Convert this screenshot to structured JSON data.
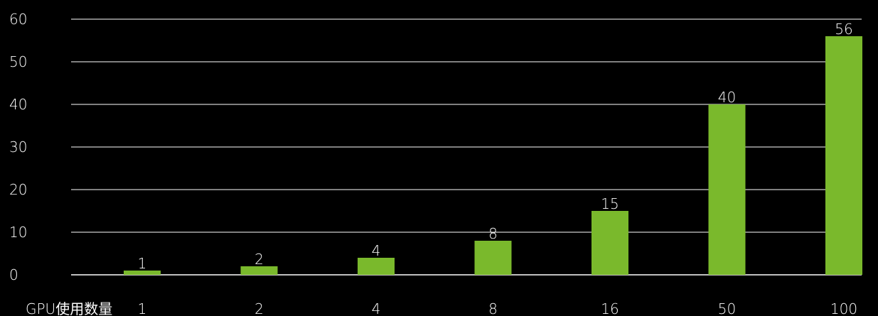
{
  "chart_data": {
    "type": "bar",
    "xlabel": "GPU使用数量",
    "ylabel": "",
    "title": "",
    "categories": [
      "1",
      "2",
      "4",
      "8",
      "16",
      "50",
      "100"
    ],
    "values": [
      1,
      2,
      4,
      8,
      15,
      40,
      56
    ],
    "ylim": [
      0,
      60
    ],
    "yticks": [
      0,
      10,
      20,
      30,
      40,
      50,
      60
    ],
    "grid": true,
    "data_labels": true,
    "legend": "none",
    "colors": {
      "background": "#000000",
      "bar": "#7ab92c",
      "grid": "#ffffff",
      "text": "#ffffff"
    }
  }
}
